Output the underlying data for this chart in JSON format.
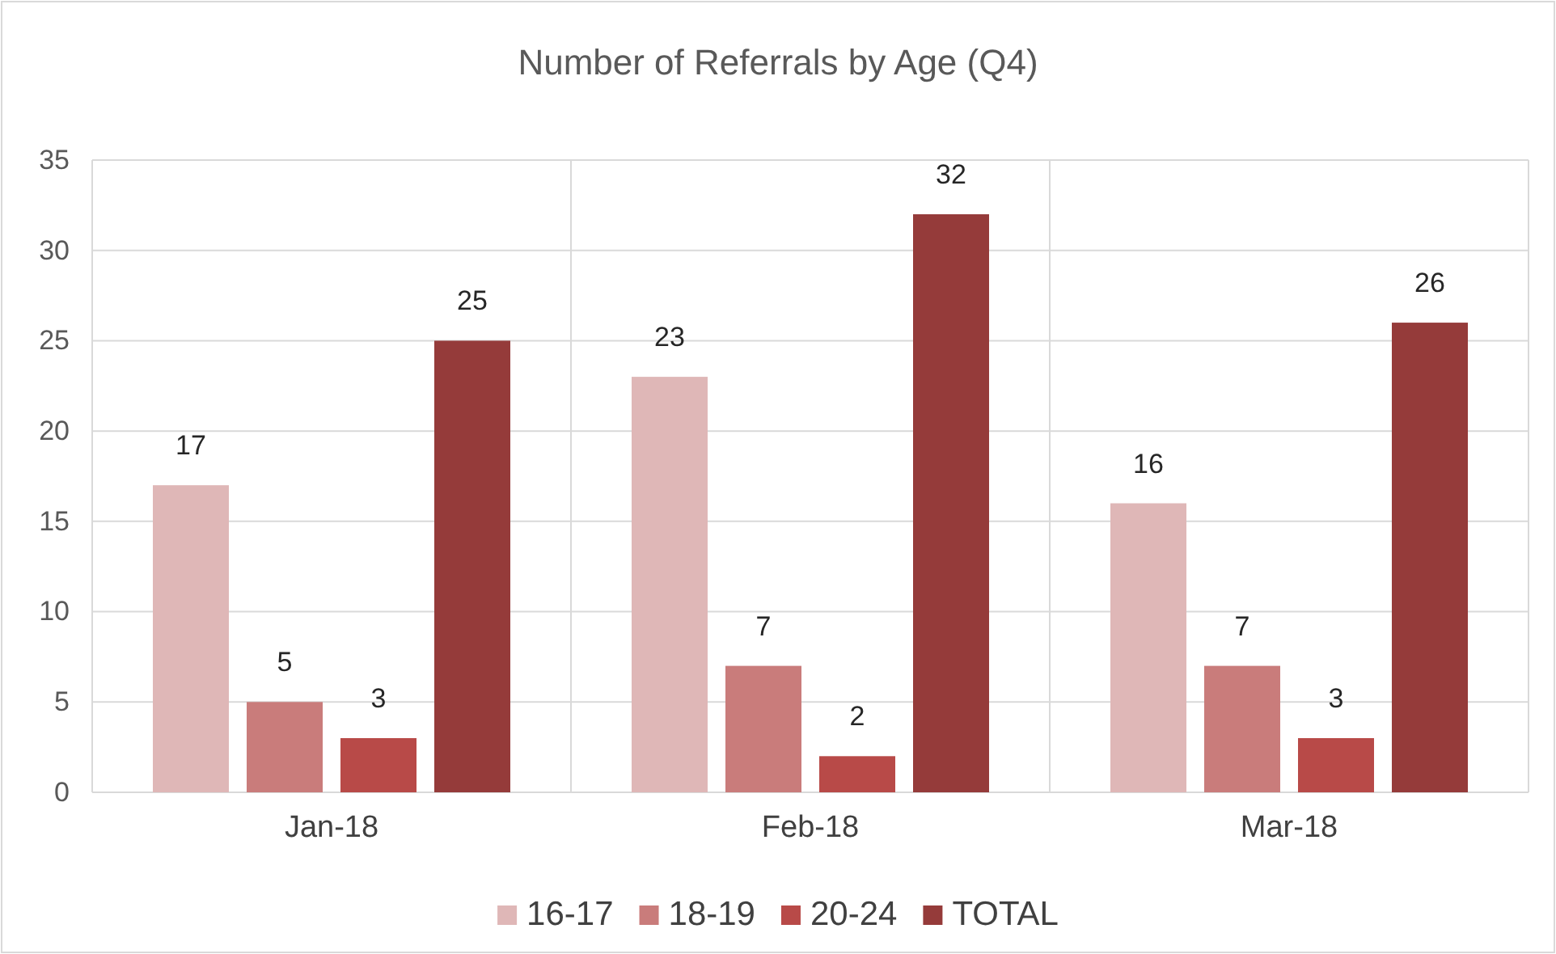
{
  "chart_data": {
    "type": "bar",
    "title": "Number of Referrals by Age (Q4)",
    "categories": [
      "Jan-18",
      "Feb-18",
      "Mar-18"
    ],
    "series": [
      {
        "name": "16-17",
        "color": "#dfb7b7",
        "values": [
          17,
          23,
          16
        ]
      },
      {
        "name": "18-19",
        "color": "#c97c7b",
        "values": [
          5,
          7,
          7
        ]
      },
      {
        "name": "20-24",
        "color": "#b84a48",
        "values": [
          3,
          2,
          3
        ]
      },
      {
        "name": "TOTAL",
        "color": "#953b3a",
        "values": [
          25,
          32,
          26
        ]
      }
    ],
    "ylim": [
      0,
      35
    ],
    "yticks": [
      0,
      5,
      10,
      15,
      20,
      25,
      30,
      35
    ],
    "grid": true,
    "legend": "bottom",
    "data_labels": true
  }
}
